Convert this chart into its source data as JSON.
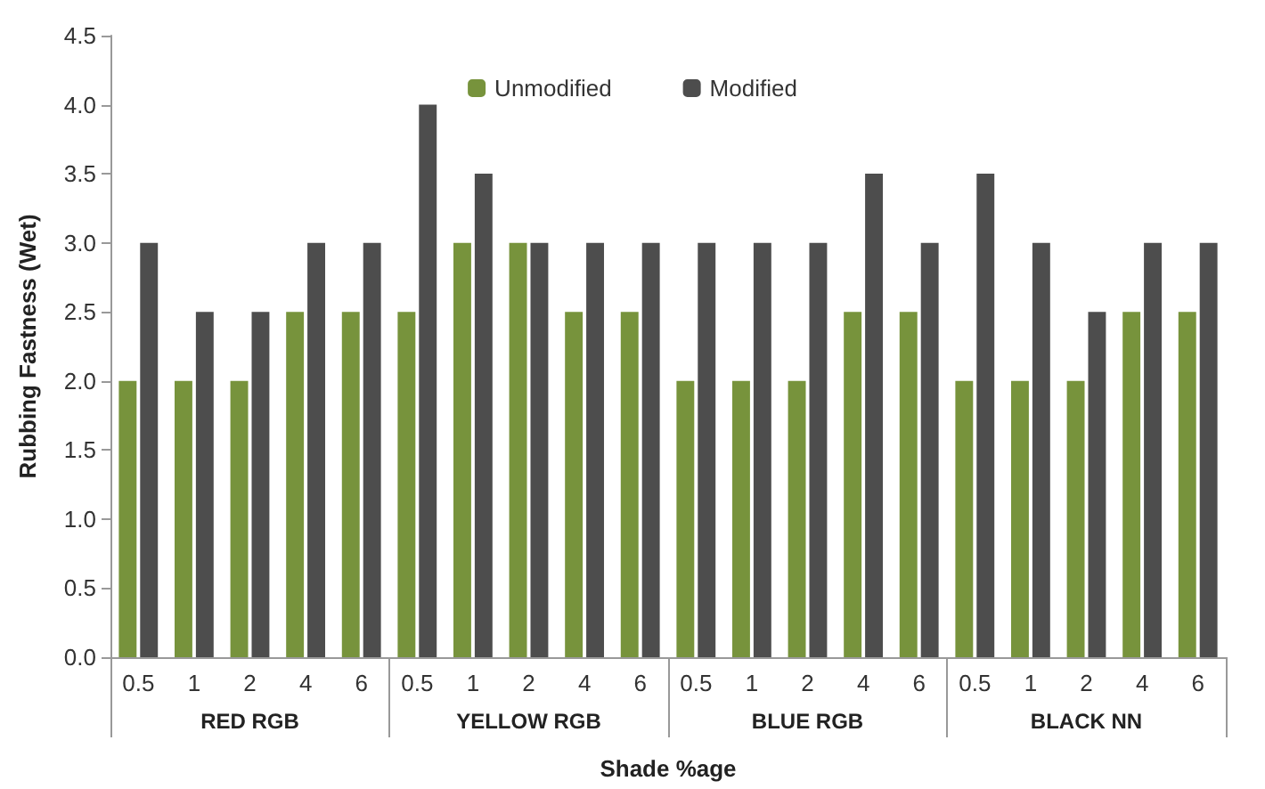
{
  "chart_data": {
    "type": "bar",
    "xlabel": "Shade %age",
    "ylabel": "Rubbing Fastness (Wet)",
    "categories": [
      "0.5",
      "1",
      "2",
      "4",
      "6",
      "0.5",
      "1",
      "2",
      "4",
      "6",
      "0.5",
      "1",
      "2",
      "4",
      "6",
      "0.5",
      "1",
      "2",
      "4",
      "6"
    ],
    "annotations": [
      "RED RGB",
      "YELLOW RGB",
      "BLUE RGB",
      "BLACK NN"
    ],
    "series": [
      {
        "name": "Unmodified",
        "color": "#77933c",
        "values": [
          2,
          2,
          2,
          2.5,
          2.5,
          2.5,
          3,
          3,
          2.5,
          2.5,
          2,
          2,
          2,
          2.5,
          2.5,
          2,
          2,
          2,
          2.5,
          2.5
        ]
      },
      {
        "name": "Modified",
        "color": "#4d4d4d",
        "values": [
          3,
          2.5,
          2.5,
          3,
          3,
          4,
          3.5,
          3,
          3,
          3,
          3,
          3,
          3,
          3.5,
          3,
          3.5,
          3,
          2.5,
          3,
          3
        ]
      }
    ],
    "ylim": [
      0,
      4.5
    ],
    "yticks": [
      {
        "value": 0,
        "label": "0.0"
      },
      {
        "value": 0.5,
        "label": "0.5"
      },
      {
        "value": 1,
        "label": "1.0"
      },
      {
        "value": 1.5,
        "label": "1.5"
      },
      {
        "value": 2,
        "label": "2.0"
      },
      {
        "value": 2.5,
        "label": "2.5"
      },
      {
        "value": 3,
        "label": "3.0"
      },
      {
        "value": 3.5,
        "label": "3.5"
      },
      {
        "value": 4,
        "label": "4.0"
      },
      {
        "value": 4.5,
        "label": "4.5"
      }
    ],
    "grid": false,
    "legend": "top"
  }
}
